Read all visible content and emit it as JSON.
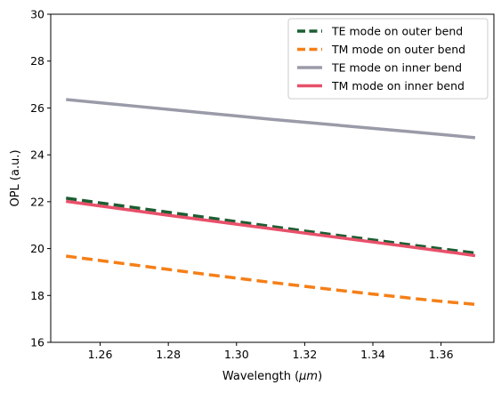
{
  "chart_data": {
    "type": "line",
    "title": "",
    "xlabel": "Wavelength (",
    "xlabel_unit": "μm",
    "xlabel_close": ")",
    "ylabel": "OPL (a.u.)",
    "xlim": [
      1.2455,
      1.3755
    ],
    "ylim": [
      16,
      30
    ],
    "xticks": [
      1.26,
      1.28,
      1.3,
      1.32,
      1.34,
      1.36
    ],
    "xtick_labels": [
      "1.26",
      "1.28",
      "1.30",
      "1.32",
      "1.34",
      "1.36"
    ],
    "yticks": [
      16,
      18,
      20,
      22,
      24,
      26,
      28,
      30
    ],
    "ytick_labels": [
      "16",
      "18",
      "20",
      "22",
      "24",
      "26",
      "28",
      "30"
    ],
    "grid": false,
    "legend_position": "top-right",
    "x": [
      1.25,
      1.26,
      1.27,
      1.28,
      1.29,
      1.3,
      1.31,
      1.32,
      1.33,
      1.34,
      1.35,
      1.36,
      1.37
    ],
    "series": [
      {
        "name": "TE mode on outer bend",
        "color": "#1b5e32",
        "style": "dashed",
        "values": [
          22.15,
          21.95,
          21.75,
          21.55,
          21.35,
          21.15,
          20.95,
          20.75,
          20.56,
          20.37,
          20.18,
          19.99,
          19.81
        ]
      },
      {
        "name": "TM mode on outer bend",
        "color": "#f57f17",
        "style": "dashed",
        "values": [
          19.68,
          19.49,
          19.3,
          19.11,
          18.92,
          18.74,
          18.56,
          18.39,
          18.22,
          18.06,
          17.9,
          17.75,
          17.62
        ]
      },
      {
        "name": "TE mode on inner bend",
        "color": "#9a9ba8",
        "style": "solid",
        "values": [
          26.36,
          26.22,
          26.08,
          25.94,
          25.8,
          25.66,
          25.52,
          25.39,
          25.26,
          25.13,
          25.0,
          24.87,
          24.73
        ]
      },
      {
        "name": "TM mode on inner bend",
        "color": "#e8506a",
        "style": "solid",
        "values": [
          22.02,
          21.82,
          21.62,
          21.42,
          21.23,
          21.04,
          20.85,
          20.66,
          20.47,
          20.28,
          20.09,
          19.9,
          19.7
        ]
      }
    ]
  }
}
